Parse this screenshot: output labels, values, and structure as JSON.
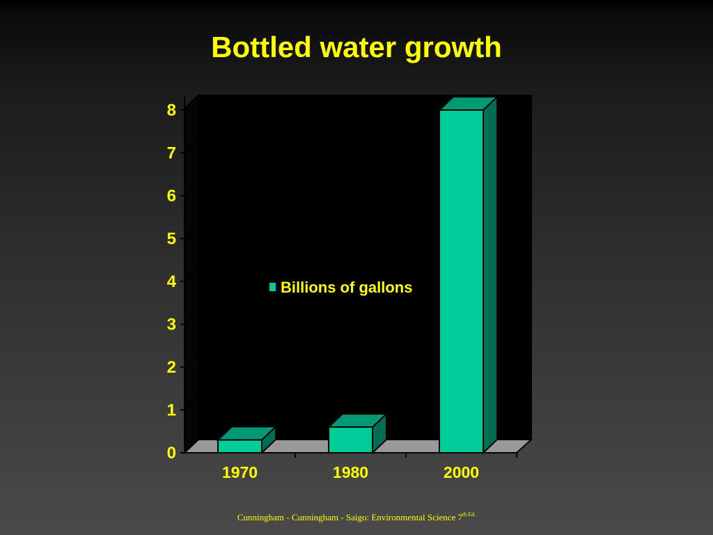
{
  "slide": {
    "title": "Bottled water growth",
    "citation_main": "Cunningham - Cunningham - Saigo: Environmental Science 7",
    "citation_sup": "th Ed."
  },
  "chart_data": {
    "type": "bar",
    "categories": [
      "1970",
      "1980",
      "2000"
    ],
    "series": [
      {
        "name": "Billions of gallons",
        "values": [
          0.3,
          0.6,
          8
        ]
      }
    ],
    "ylim": [
      0,
      8
    ],
    "yticks": [
      "0",
      "1",
      "2",
      "3",
      "4",
      "5",
      "6",
      "7",
      "8"
    ],
    "grid": true,
    "three_d": true,
    "legend_position": "inside-center",
    "colors": {
      "bar_front": "#00cc99",
      "bar_top": "#009973",
      "bar_side": "#006e52",
      "outline": "#000000",
      "floor": "#999999",
      "text": "#ffff00"
    }
  }
}
